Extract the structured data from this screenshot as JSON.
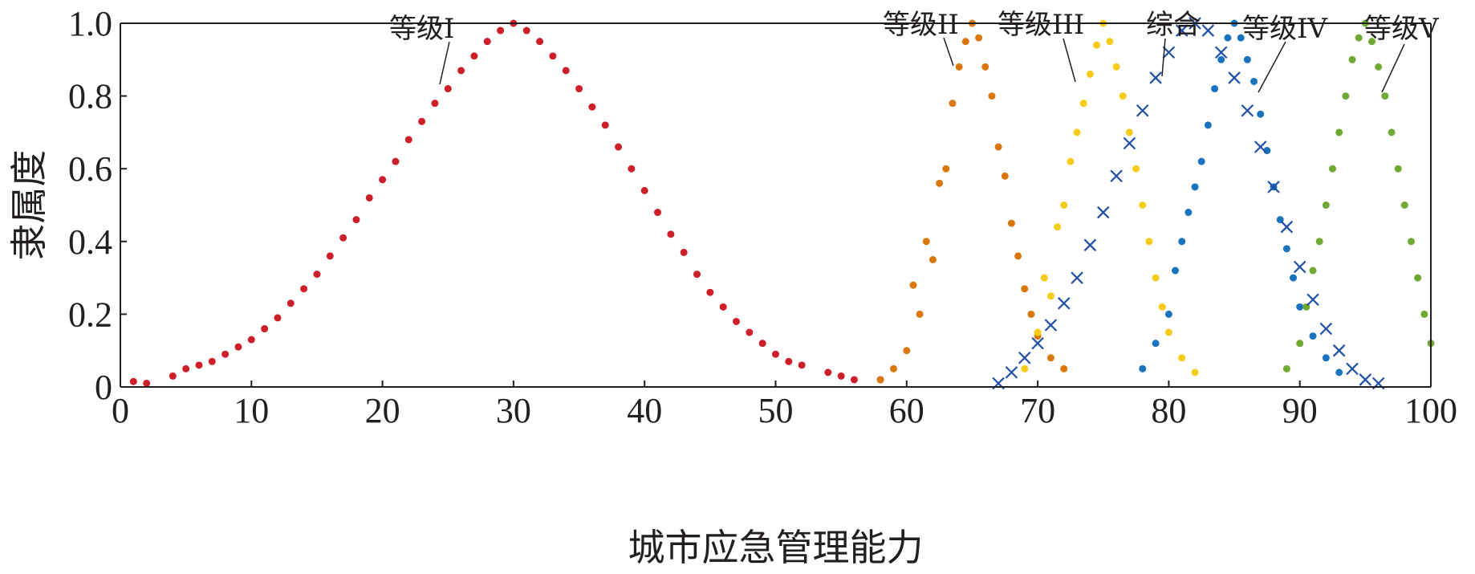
{
  "chart_data": {
    "type": "scatter",
    "xlabel": "城市应急管理能力",
    "ylabel": "隶属度",
    "xlim": [
      0,
      100
    ],
    "ylim": [
      0,
      1
    ],
    "xticks": [
      0,
      10,
      20,
      30,
      40,
      50,
      60,
      70,
      80,
      90,
      100
    ],
    "yticks": [
      0,
      0.2,
      0.4,
      0.6,
      0.8,
      1.0
    ],
    "xtick_labels": [
      "0",
      "10",
      "20",
      "30",
      "40",
      "50",
      "60",
      "70",
      "80",
      "90",
      "100"
    ],
    "ytick_labels": [
      "0",
      "0.2",
      "0.4",
      "0.6",
      "0.8",
      "1.0"
    ],
    "grid": false,
    "series": [
      {
        "name": "等级I",
        "marker": "dot",
        "color": "#cc1f2a",
        "peak_x": 30,
        "points": [
          [
            1,
            0.015
          ],
          [
            2,
            0.01
          ],
          [
            4,
            0.03
          ],
          [
            5,
            0.05
          ],
          [
            6,
            0.06
          ],
          [
            7,
            0.07
          ],
          [
            8,
            0.09
          ],
          [
            9,
            0.11
          ],
          [
            10,
            0.13
          ],
          [
            11,
            0.16
          ],
          [
            12,
            0.19
          ],
          [
            13,
            0.23
          ],
          [
            14,
            0.27
          ],
          [
            15,
            0.31
          ],
          [
            16,
            0.36
          ],
          [
            17,
            0.41
          ],
          [
            18,
            0.46
          ],
          [
            19,
            0.52
          ],
          [
            20,
            0.57
          ],
          [
            21,
            0.62
          ],
          [
            22,
            0.68
          ],
          [
            23,
            0.73
          ],
          [
            24,
            0.78
          ],
          [
            25,
            0.82
          ],
          [
            26,
            0.87
          ],
          [
            27,
            0.91
          ],
          [
            28,
            0.95
          ],
          [
            29,
            0.98
          ],
          [
            30,
            1.0
          ],
          [
            31,
            0.98
          ],
          [
            32,
            0.95
          ],
          [
            33,
            0.91
          ],
          [
            34,
            0.87
          ],
          [
            35,
            0.82
          ],
          [
            36,
            0.77
          ],
          [
            37,
            0.72
          ],
          [
            38,
            0.66
          ],
          [
            39,
            0.6
          ],
          [
            40,
            0.54
          ],
          [
            41,
            0.48
          ],
          [
            42,
            0.42
          ],
          [
            43,
            0.37
          ],
          [
            44,
            0.31
          ],
          [
            45,
            0.26
          ],
          [
            46,
            0.22
          ],
          [
            47,
            0.18
          ],
          [
            48,
            0.15
          ],
          [
            49,
            0.12
          ],
          [
            50,
            0.09
          ],
          [
            51,
            0.07
          ],
          [
            52,
            0.06
          ],
          [
            54,
            0.04
          ],
          [
            55,
            0.03
          ],
          [
            56,
            0.02
          ],
          [
            58,
            0.02
          ]
        ]
      },
      {
        "name": "等级II",
        "marker": "dot",
        "color": "#d9780f",
        "peak_x": 65,
        "points": [
          [
            58,
            0.02
          ],
          [
            59,
            0.05
          ],
          [
            60,
            0.1
          ],
          [
            60.5,
            0.28
          ],
          [
            61,
            0.2
          ],
          [
            61.5,
            0.4
          ],
          [
            62,
            0.35
          ],
          [
            62.5,
            0.56
          ],
          [
            63,
            0.6
          ],
          [
            63.5,
            0.78
          ],
          [
            64,
            0.88
          ],
          [
            64.5,
            0.95
          ],
          [
            65,
            1.0
          ],
          [
            65.5,
            0.96
          ],
          [
            66,
            0.88
          ],
          [
            66.5,
            0.8
          ],
          [
            67,
            0.66
          ],
          [
            67.5,
            0.58
          ],
          [
            68,
            0.45
          ],
          [
            68.5,
            0.36
          ],
          [
            69,
            0.27
          ],
          [
            69.5,
            0.2
          ],
          [
            70,
            0.14
          ],
          [
            71,
            0.08
          ],
          [
            72,
            0.05
          ]
        ]
      },
      {
        "name": "等级III",
        "marker": "dot",
        "color": "#f5cc1a",
        "peak_x": 75,
        "points": [
          [
            69,
            0.05
          ],
          [
            70,
            0.15
          ],
          [
            70.5,
            0.3
          ],
          [
            71,
            0.25
          ],
          [
            71.5,
            0.44
          ],
          [
            72,
            0.5
          ],
          [
            72.5,
            0.62
          ],
          [
            73,
            0.7
          ],
          [
            73.5,
            0.78
          ],
          [
            74,
            0.86
          ],
          [
            74.5,
            0.94
          ],
          [
            75,
            1.0
          ],
          [
            75.5,
            0.95
          ],
          [
            76,
            0.88
          ],
          [
            76.5,
            0.8
          ],
          [
            77,
            0.7
          ],
          [
            77.5,
            0.6
          ],
          [
            78,
            0.5
          ],
          [
            78.5,
            0.4
          ],
          [
            79,
            0.3
          ],
          [
            79.5,
            0.22
          ],
          [
            80,
            0.15
          ],
          [
            81,
            0.08
          ],
          [
            82,
            0.04
          ]
        ]
      },
      {
        "name": "等级IV",
        "marker": "dot",
        "color": "#1a73bd",
        "peak_x": 85,
        "points": [
          [
            78,
            0.05
          ],
          [
            79,
            0.12
          ],
          [
            80,
            0.2
          ],
          [
            80.5,
            0.32
          ],
          [
            81,
            0.4
          ],
          [
            81.5,
            0.48
          ],
          [
            82,
            0.55
          ],
          [
            82.5,
            0.62
          ],
          [
            83,
            0.72
          ],
          [
            83.5,
            0.82
          ],
          [
            84,
            0.9
          ],
          [
            84.5,
            0.96
          ],
          [
            85,
            1.0
          ],
          [
            85.5,
            0.96
          ],
          [
            86,
            0.9
          ],
          [
            86.5,
            0.84
          ],
          [
            87,
            0.75
          ],
          [
            87.5,
            0.65
          ],
          [
            88,
            0.55
          ],
          [
            88.5,
            0.46
          ],
          [
            89,
            0.38
          ],
          [
            89.5,
            0.3
          ],
          [
            90,
            0.22
          ],
          [
            91,
            0.14
          ],
          [
            92,
            0.08
          ],
          [
            93,
            0.04
          ]
        ]
      },
      {
        "name": "等级V",
        "marker": "dot",
        "color": "#6fa832",
        "peak_x": 95,
        "points": [
          [
            89,
            0.05
          ],
          [
            90,
            0.12
          ],
          [
            90.5,
            0.22
          ],
          [
            91,
            0.32
          ],
          [
            91.5,
            0.4
          ],
          [
            92,
            0.5
          ],
          [
            92.5,
            0.6
          ],
          [
            93,
            0.7
          ],
          [
            93.5,
            0.8
          ],
          [
            94,
            0.9
          ],
          [
            94.5,
            0.96
          ],
          [
            95,
            1.0
          ],
          [
            95.5,
            0.95
          ],
          [
            96,
            0.88
          ],
          [
            96.5,
            0.8
          ],
          [
            97,
            0.7
          ],
          [
            97.5,
            0.6
          ],
          [
            98,
            0.5
          ],
          [
            98.5,
            0.4
          ],
          [
            99,
            0.3
          ],
          [
            99.5,
            0.2
          ],
          [
            100,
            0.12
          ]
        ]
      },
      {
        "name": "综合",
        "marker": "x",
        "color": "#1f4fa6",
        "peak_x": 82,
        "points": [
          [
            67,
            0.01
          ],
          [
            68,
            0.04
          ],
          [
            69,
            0.08
          ],
          [
            70,
            0.12
          ],
          [
            71,
            0.17
          ],
          [
            72,
            0.23
          ],
          [
            73,
            0.3
          ],
          [
            74,
            0.39
          ],
          [
            75,
            0.48
          ],
          [
            76,
            0.58
          ],
          [
            77,
            0.67
          ],
          [
            78,
            0.76
          ],
          [
            79,
            0.85
          ],
          [
            80,
            0.92
          ],
          [
            81,
            0.98
          ],
          [
            82,
            1.0
          ],
          [
            83,
            0.98
          ],
          [
            84,
            0.92
          ],
          [
            85,
            0.85
          ],
          [
            86,
            0.76
          ],
          [
            87,
            0.66
          ],
          [
            88,
            0.55
          ],
          [
            89,
            0.44
          ],
          [
            90,
            0.33
          ],
          [
            91,
            0.24
          ],
          [
            92,
            0.16
          ],
          [
            93,
            0.1
          ],
          [
            94,
            0.05
          ],
          [
            95,
            0.02
          ],
          [
            96,
            0.01
          ]
        ]
      }
    ]
  }
}
